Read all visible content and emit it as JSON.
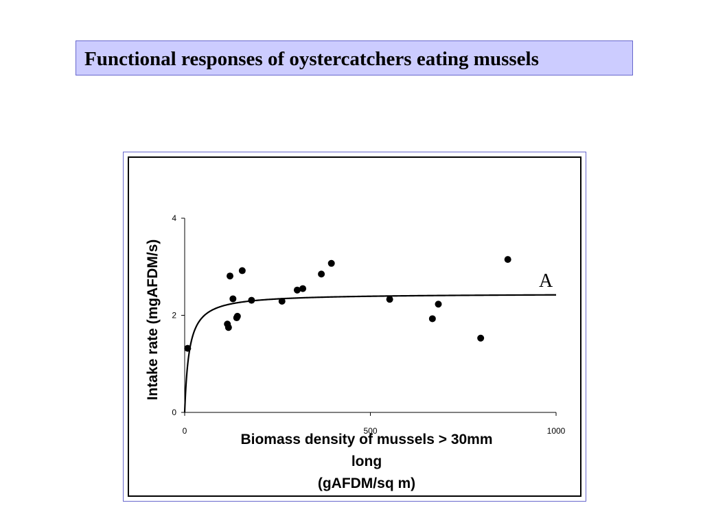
{
  "slide": {
    "title": "Functional responses of oystercatchers eating mussels"
  },
  "chart_data": {
    "type": "scatter",
    "title": "",
    "xlabel_lines": [
      "Biomass density of mussels > 30mm",
      "long",
      "(gAFDM/sq m)"
    ],
    "ylabel": "Intake rate (mgAFDM/s)",
    "xlim": [
      0,
      1000
    ],
    "ylim": [
      0,
      4
    ],
    "x_ticks": [
      0,
      500,
      1000
    ],
    "y_ticks": [
      0,
      2,
      4
    ],
    "grid": false,
    "series": [
      {
        "points": [
          {
            "x": 8,
            "y": 1.32
          },
          {
            "x": 115,
            "y": 1.82
          },
          {
            "x": 118,
            "y": 1.75
          },
          {
            "x": 122,
            "y": 2.81
          },
          {
            "x": 130,
            "y": 2.34
          },
          {
            "x": 140,
            "y": 1.95
          },
          {
            "x": 142,
            "y": 1.98
          },
          {
            "x": 155,
            "y": 2.92
          },
          {
            "x": 180,
            "y": 2.31
          },
          {
            "x": 262,
            "y": 2.29
          },
          {
            "x": 303,
            "y": 2.52
          },
          {
            "x": 318,
            "y": 2.55
          },
          {
            "x": 368,
            "y": 2.85
          },
          {
            "x": 395,
            "y": 3.07
          },
          {
            "x": 552,
            "y": 2.33
          },
          {
            "x": 667,
            "y": 1.93
          },
          {
            "x": 683,
            "y": 2.23
          },
          {
            "x": 797,
            "y": 1.53
          },
          {
            "x": 870,
            "y": 3.15
          }
        ]
      }
    ],
    "fit_curve": {
      "type": "holling-type-II",
      "asymptote": 2.45,
      "half_saturation": 12
    },
    "annotation": "A",
    "colors": {
      "marker": "#000000",
      "line": "#000000",
      "title_bg": "#ccccff",
      "frame": "#6666cc"
    }
  }
}
